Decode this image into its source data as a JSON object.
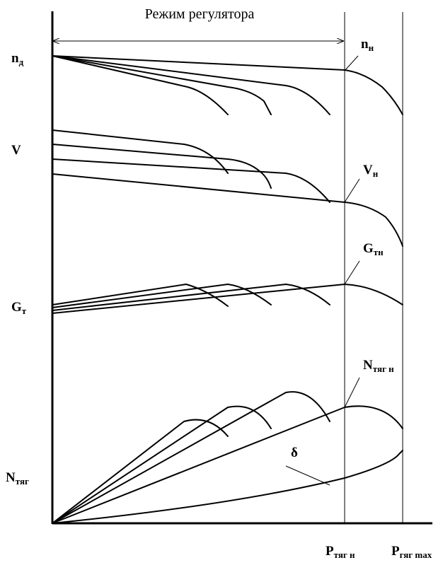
{
  "title": "Режим регулятора",
  "labels": {
    "n_d": {
      "main": "n",
      "sub": "д"
    },
    "V": {
      "main": "V",
      "sub": ""
    },
    "G_t": {
      "main": "G",
      "sub": "т"
    },
    "N_tyag": {
      "main": "N",
      "sub": "тяг"
    },
    "n_n": {
      "main": "n",
      "sub": "н"
    },
    "V_n": {
      "main": "V",
      "sub": "н"
    },
    "G_tn": {
      "main": "G",
      "sub": "тн"
    },
    "N_tyag_n": {
      "main": "N",
      "sub": "тяг н"
    },
    "delta": {
      "main": "δ",
      "sub": ""
    },
    "P_tyag_n": {
      "main": "P",
      "sub": "тяг н"
    },
    "P_tyag_max": {
      "main": "P",
      "sub": "гяг max"
    }
  }
}
